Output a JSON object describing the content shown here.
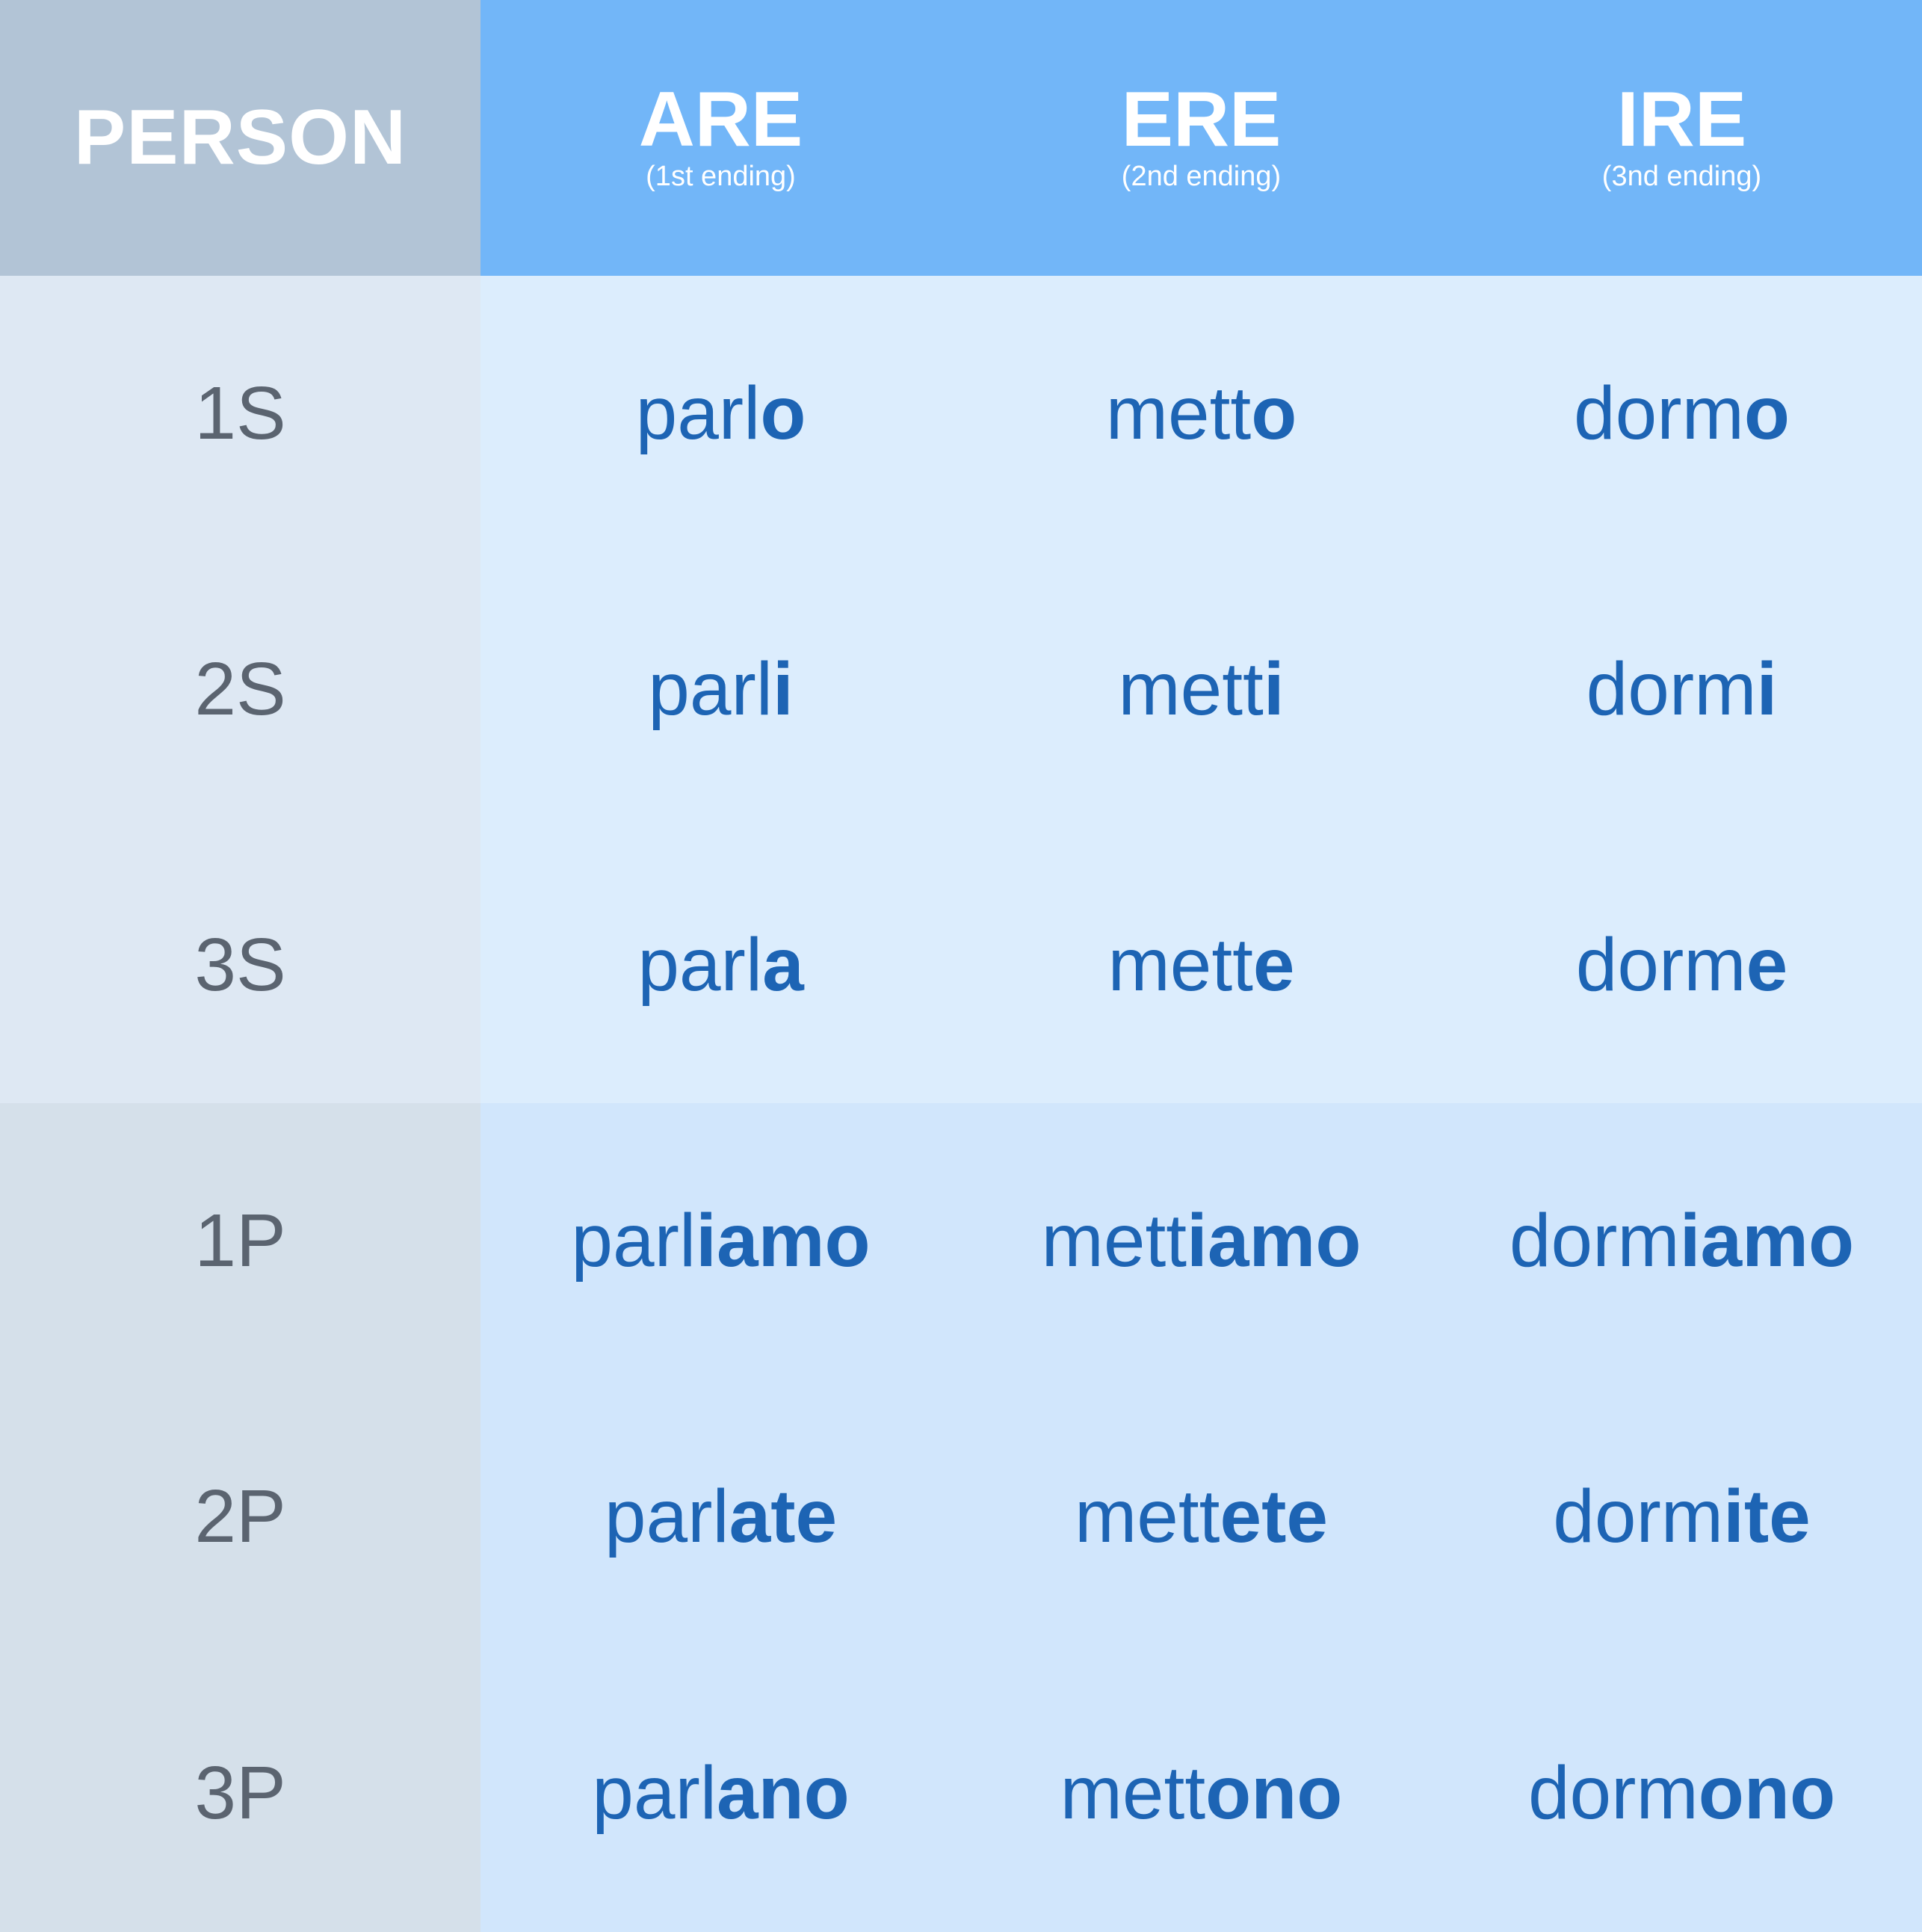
{
  "header": {
    "person": "PERSON",
    "columns": [
      {
        "title": "ARE",
        "subtitle": "(1st ending)"
      },
      {
        "title": "ERE",
        "subtitle": "(2nd ending)"
      },
      {
        "title": "IRE",
        "subtitle": "(3nd ending)"
      }
    ]
  },
  "rows": [
    {
      "person": "1S",
      "group": "singular",
      "forms": [
        {
          "stem": "parl",
          "ending": "o"
        },
        {
          "stem": "mett",
          "ending": "o"
        },
        {
          "stem": "dorm",
          "ending": "o"
        }
      ]
    },
    {
      "person": "2S",
      "group": "singular",
      "forms": [
        {
          "stem": "parl",
          "ending": "i"
        },
        {
          "stem": "mett",
          "ending": "i"
        },
        {
          "stem": "dorm",
          "ending": "i"
        }
      ]
    },
    {
      "person": "3S",
      "group": "singular",
      "forms": [
        {
          "stem": "parl",
          "ending": "a"
        },
        {
          "stem": "mett",
          "ending": "e"
        },
        {
          "stem": "dorm",
          "ending": "e"
        }
      ]
    },
    {
      "person": "1P",
      "group": "plural",
      "forms": [
        {
          "stem": "parl",
          "ending": "iamo"
        },
        {
          "stem": "mett",
          "ending": "iamo"
        },
        {
          "stem": "dorm",
          "ending": "iamo"
        }
      ]
    },
    {
      "person": "2P",
      "group": "plural",
      "forms": [
        {
          "stem": "parl",
          "ending": "ate"
        },
        {
          "stem": "mett",
          "ending": "ete"
        },
        {
          "stem": "dorm",
          "ending": "ite"
        }
      ]
    },
    {
      "person": "3P",
      "group": "plural",
      "forms": [
        {
          "stem": "parl",
          "ending": "ano"
        },
        {
          "stem": "mett",
          "ending": "ono"
        },
        {
          "stem": "dorm",
          "ending": "ono"
        }
      ]
    }
  ],
  "colors": {
    "header_person_bg": "#b2c4d6",
    "header_verb_bg": "#72b6f8",
    "person_singular_bg": "#dee8f3",
    "person_plural_bg": "#d5e0ea",
    "verb_singular_bg": "#dcedfd",
    "verb_plural_bg": "#d1e6fc",
    "form_text": "#1d64b4",
    "person_text": "#5b6470"
  }
}
